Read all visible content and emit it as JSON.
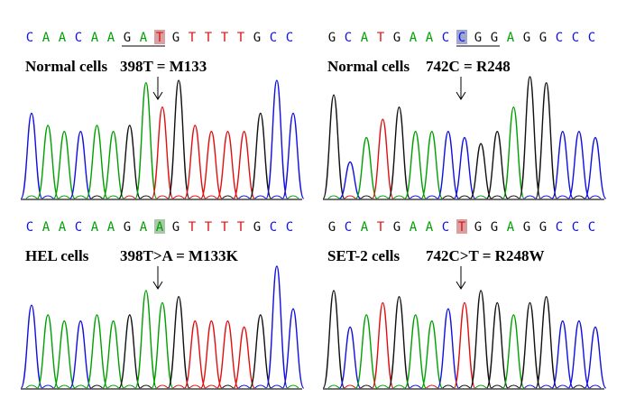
{
  "panels": [
    {
      "sequence": [
        "C",
        "A",
        "A",
        "C",
        "A",
        "A",
        "G",
        "A",
        "T",
        "G",
        "T",
        "T",
        "T",
        "T",
        "G",
        "C",
        "C"
      ],
      "cell": "Normal cells",
      "mutation": "398T = M133"
    },
    {
      "sequence": [
        "G",
        "C",
        "A",
        "T",
        "G",
        "A",
        "A",
        "C",
        "C",
        "G",
        "G",
        "A",
        "G",
        "G",
        "C",
        "C",
        "C"
      ],
      "cell": "Normal cells",
      "mutation": "742C  = R248"
    },
    {
      "sequence": [
        "C",
        "A",
        "A",
        "C",
        "A",
        "A",
        "G",
        "A",
        "A",
        "G",
        "T",
        "T",
        "T",
        "T",
        "G",
        "C",
        "C"
      ],
      "cell": "HEL cells",
      "mutation": "398T>A = M133K"
    },
    {
      "sequence": [
        "G",
        "C",
        "A",
        "T",
        "G",
        "A",
        "A",
        "C",
        "T",
        "G",
        "G",
        "A",
        "G",
        "G",
        "C",
        "C",
        "C"
      ],
      "cell": "SET-2 cells",
      "mutation": "742C>T  = R248W"
    }
  ]
}
